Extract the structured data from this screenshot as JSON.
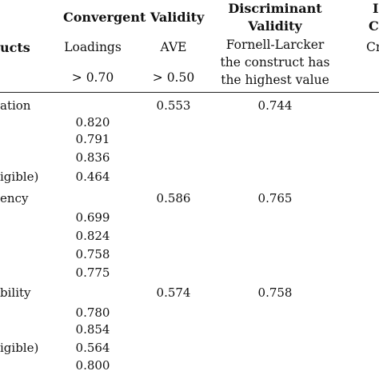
{
  "header": {
    "convergent_validity": "Convergent Validity",
    "discriminant_validity_line1": "Discriminant",
    "discriminant_validity_line2": "Validity",
    "right_col_line1": "I",
    "right_col_line2": "Co",
    "constructs": "ucts",
    "loadings": "Loadings",
    "ave": "AVE",
    "fornell_line1": "Fornell-Larcker",
    "fornell_line2": "the construct has",
    "fornell_line3": "the highest value",
    "right_sub": "Cr",
    "loadings_threshold": "> 0.70",
    "ave_threshold": "> 0.50"
  },
  "rows": [
    {
      "label": "ation",
      "loading": "",
      "ave": "0.553",
      "fl": "0.744"
    },
    {
      "label": "",
      "loading": "0.820",
      "ave": "",
      "fl": ""
    },
    {
      "label": "",
      "loading": "0.791",
      "ave": "",
      "fl": ""
    },
    {
      "label": "",
      "loading": "0.836",
      "ave": "",
      "fl": ""
    },
    {
      "label": "igible)",
      "loading": "0.464",
      "ave": "",
      "fl": ""
    },
    {
      "label": "ency",
      "loading": "",
      "ave": "0.586",
      "fl": "0.765"
    },
    {
      "label": "",
      "loading": "0.699",
      "ave": "",
      "fl": ""
    },
    {
      "label": "",
      "loading": "0.824",
      "ave": "",
      "fl": ""
    },
    {
      "label": "",
      "loading": "0.758",
      "ave": "",
      "fl": ""
    },
    {
      "label": "",
      "loading": "0.775",
      "ave": "",
      "fl": ""
    },
    {
      "label": "bility",
      "loading": "",
      "ave": "0.574",
      "fl": "0.758"
    },
    {
      "label": "",
      "loading": "0.780",
      "ave": "",
      "fl": ""
    },
    {
      "label": "",
      "loading": "0.854",
      "ave": "",
      "fl": ""
    },
    {
      "label": "igible)",
      "loading": "0.564",
      "ave": "",
      "fl": ""
    },
    {
      "label": "",
      "loading": "0.800",
      "ave": "",
      "fl": ""
    }
  ]
}
